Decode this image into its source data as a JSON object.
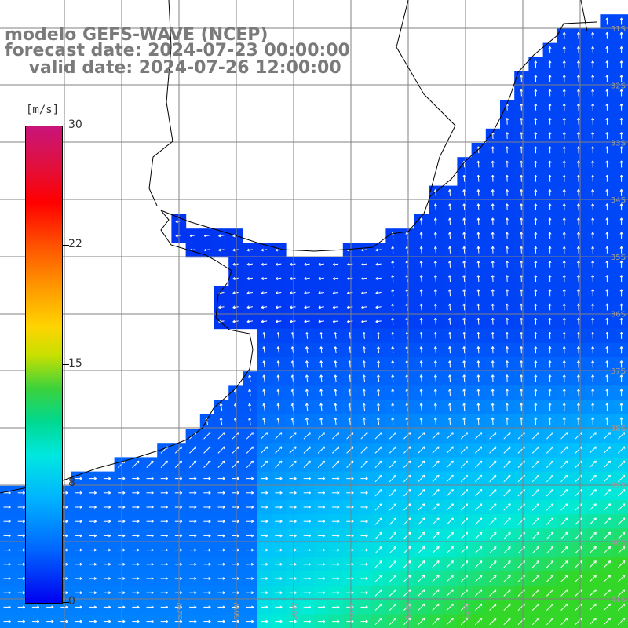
{
  "header": {
    "line1": "modelo GEFS-WAVE (NCEP)",
    "line2": "forecast date: 2024-07-23 00:00:00",
    "line3": "    valid date: 2024-07-26 12:00:00"
  },
  "colorbar": {
    "unit": "[m/s]",
    "ticks": [
      "30",
      "22",
      "15",
      "8",
      "0"
    ],
    "tick_values": [
      30,
      22,
      15,
      8,
      0
    ],
    "colors": [
      "#0000f0",
      "#0064ff",
      "#00b4ff",
      "#00e8e0",
      "#00d890",
      "#3cd23c",
      "#c8e000",
      "#ffd400",
      "#ff9a00",
      "#ff5a00",
      "#ff0000",
      "#e01040",
      "#c8147a"
    ]
  },
  "map": {
    "variable": "wind speed and direction",
    "unit": "m/s",
    "lat_labels": [
      "31S",
      "32S",
      "33S",
      "34S",
      "35S",
      "36S",
      "37S",
      "38S",
      "39S",
      "40S",
      "41S"
    ],
    "lon_labels": [
      "62W",
      "60W",
      "58W",
      "56W",
      "54W",
      "52W"
    ],
    "land_color": "#ffffff",
    "grid_color": "#808080",
    "arrow_color": "#ffffff"
  }
}
